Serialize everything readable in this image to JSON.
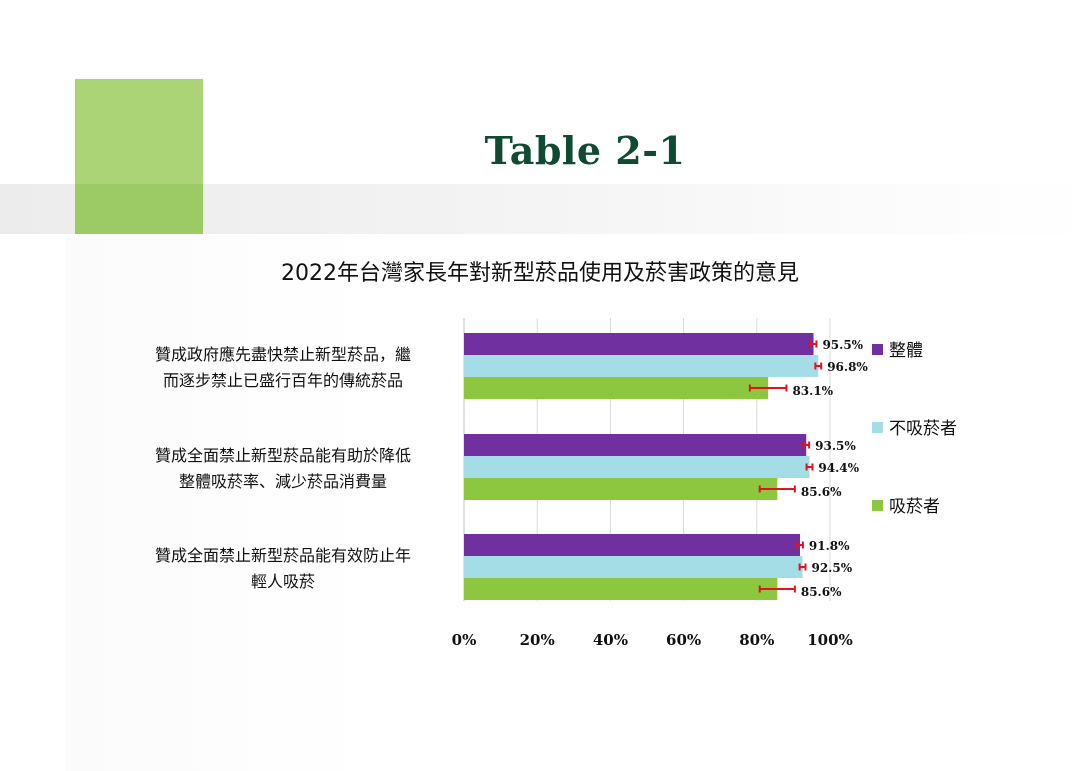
{
  "slide": {
    "title": "Table 2-1"
  },
  "chart_data": {
    "type": "bar",
    "orientation": "horizontal",
    "title": "2022年台灣家長年對新型菸品使用及菸害政策的意見",
    "categories": [
      "贊成政府應先盡快禁止新型菸品，繼而逐步禁止已盛行百年的傳統菸品",
      "贊成全面禁止新型菸品能有助於降低整體吸菸率、減少菸品消費量",
      "贊成全面禁止新型菸品能有效防止年輕人吸菸"
    ],
    "category_lines": [
      [
        "贊成政府應先盡快禁止新型菸品，繼",
        "而逐步禁止已盛行百年的傳統菸品"
      ],
      [
        "贊成全面禁止新型菸品能有助於降低",
        "整體吸菸率、減少菸品消費量"
      ],
      [
        "贊成全面禁止新型菸品能有效防止年",
        "輕人吸菸"
      ]
    ],
    "series": [
      {
        "name": "整體",
        "color": "#7030a0",
        "values": [
          95.5,
          93.5,
          91.8
        ],
        "labels": [
          "95.5%",
          "93.5%",
          "91.8%"
        ],
        "error": [
          0.8,
          0.8,
          0.8
        ]
      },
      {
        "name": "不吸菸者",
        "color": "#a5dde7",
        "values": [
          96.8,
          94.4,
          92.5
        ],
        "labels": [
          "96.8%",
          "94.4%",
          "92.5%"
        ],
        "error": [
          0.8,
          0.8,
          0.8
        ]
      },
      {
        "name": "吸菸者",
        "color": "#8dc63f",
        "values": [
          83.1,
          85.6,
          85.6
        ],
        "labels": [
          "83.1%",
          "85.6%",
          "85.6%"
        ],
        "error": [
          5.0,
          4.8,
          4.8
        ]
      }
    ],
    "xlim": [
      0,
      100
    ],
    "xticks": [
      0,
      20,
      40,
      60,
      80,
      100
    ],
    "xtick_labels": [
      "0%",
      "20%",
      "40%",
      "60%",
      "80%",
      "100%"
    ],
    "grid": true,
    "legend": "right",
    "error_bar_color": "#e0141e"
  }
}
